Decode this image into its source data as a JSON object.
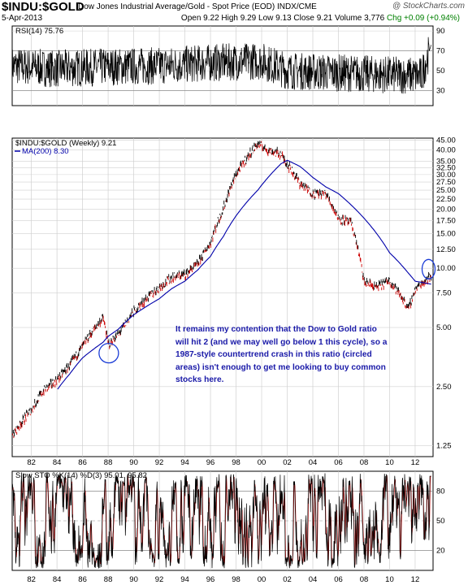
{
  "header": {
    "symbol": "$INDU:$GOLD",
    "description": "Dow Jones Industrial Average/Gold - Spot Price (EOD)",
    "exchange": "INDX/CME",
    "brand": "@ StockCharts.com",
    "date": "5-Apr-2013",
    "open": "Open 9.22",
    "high": "High 9.29",
    "low": "Low 9.13",
    "close": "Close 9.21",
    "volume": "Volume 3,776",
    "change": "Chg +0.09 (+0.94%)"
  },
  "rsi_panel": {
    "label": "RSI(14) 75.76",
    "ticks": [
      "90",
      "70",
      "50",
      "30"
    ]
  },
  "price_panel": {
    "label": "$INDU:$GOLD (Weekly) 9.21",
    "ma_label": "MA(200) 8.30",
    "annotation": "It remains my contention that the Dow to Gold ratio will hit 2 (and we may well go below 1 this cycle), so a 1987-style countertrend crash in this ratio (circled areas) isn't enough to get me looking to buy common stocks here."
  },
  "sto_panel": {
    "label": "Slow STO %K(14) %D(3) 95.01, 95.82",
    "ticks": [
      "80",
      "50",
      "20"
    ]
  },
  "colors": {
    "price_bars": "#000000",
    "price_down": "#cc0000",
    "ma_line": "#0000aa",
    "circle": "#1a3cd6",
    "annotation": "#1a1aa8"
  },
  "chart_data": [
    {
      "type": "line",
      "title": "RSI(14) 75.76",
      "ylim": [
        15,
        95
      ],
      "x": [
        1980.5,
        1984,
        1988,
        1992,
        1996,
        2000,
        2002,
        2006,
        2010,
        2012.5,
        2013.27
      ],
      "series": [
        {
          "name": "RSI(14)",
          "values": [
            55,
            52,
            54,
            55,
            58,
            60,
            50,
            48,
            46,
            45,
            76
          ]
        }
      ]
    },
    {
      "type": "line",
      "title": "$INDU:$GOLD (Weekly) 9.21",
      "y_scale": "log",
      "ylim": [
        1.1,
        46
      ],
      "x_ticks": [
        "82",
        "84",
        "86",
        "88",
        "90",
        "92",
        "94",
        "96",
        "98",
        "00",
        "02",
        "04",
        "06",
        "08",
        "10",
        "12"
      ],
      "y_ticks": [
        "45.00",
        "40.00",
        "35.00",
        "32.50",
        "30.00",
        "27.50",
        "25.00",
        "22.50",
        "20.00",
        "17.50",
        "15.00",
        "12.50",
        "10.00",
        "7.50",
        "5.00",
        "2.50",
        "1.25"
      ],
      "x": [
        1980.5,
        1982,
        1983,
        1984,
        1985,
        1986,
        1987.6,
        1988.0,
        1988.8,
        1990,
        1992,
        1993,
        1994,
        1995,
        1996,
        1997,
        1998,
        1999.7,
        2000.5,
        2001.5,
        2002.0,
        2003,
        2004,
        2005,
        2006,
        2007,
        2008,
        2009,
        2010,
        2011.5,
        2012,
        2013.27
      ],
      "series": [
        {
          "name": "$INDU:$GOLD (Weekly)",
          "values": [
            1.4,
            1.9,
            2.4,
            2.7,
            3.2,
            4.0,
            5.6,
            4.1,
            4.6,
            6.0,
            8.0,
            9.0,
            9.3,
            10.5,
            13.5,
            20.0,
            30.0,
            43.0,
            40.0,
            38.0,
            34.0,
            27.0,
            24.0,
            24.0,
            18.0,
            17.0,
            8.5,
            8.0,
            8.7,
            6.2,
            7.8,
            9.21
          ]
        },
        {
          "name": "MA(200)",
          "values": [
            null,
            null,
            null,
            2.4,
            2.9,
            3.5,
            4.2,
            4.5,
            4.9,
            5.8,
            7.0,
            7.9,
            8.6,
            9.8,
            11.5,
            14.5,
            18.5,
            25.0,
            29.0,
            34.0,
            35.5,
            33.0,
            29.0,
            26.0,
            24.0,
            21.0,
            18.0,
            15.0,
            12.0,
            9.4,
            8.6,
            8.3
          ]
        }
      ]
    },
    {
      "type": "line",
      "title": "Slow STO %K(14) %D(3) 95.01, 95.82",
      "ylim": [
        0,
        100
      ],
      "x": [
        1980.5,
        1984,
        1988,
        1992,
        1996,
        2000,
        2004,
        2008,
        2012,
        2013.27
      ],
      "series": [
        {
          "name": "%K(14)",
          "values": [
            50,
            60,
            40,
            70,
            55,
            60,
            45,
            50,
            30,
            95.01
          ]
        },
        {
          "name": "%D(3)",
          "values": [
            50,
            58,
            42,
            68,
            56,
            58,
            47,
            49,
            32,
            95.82
          ]
        }
      ]
    }
  ]
}
